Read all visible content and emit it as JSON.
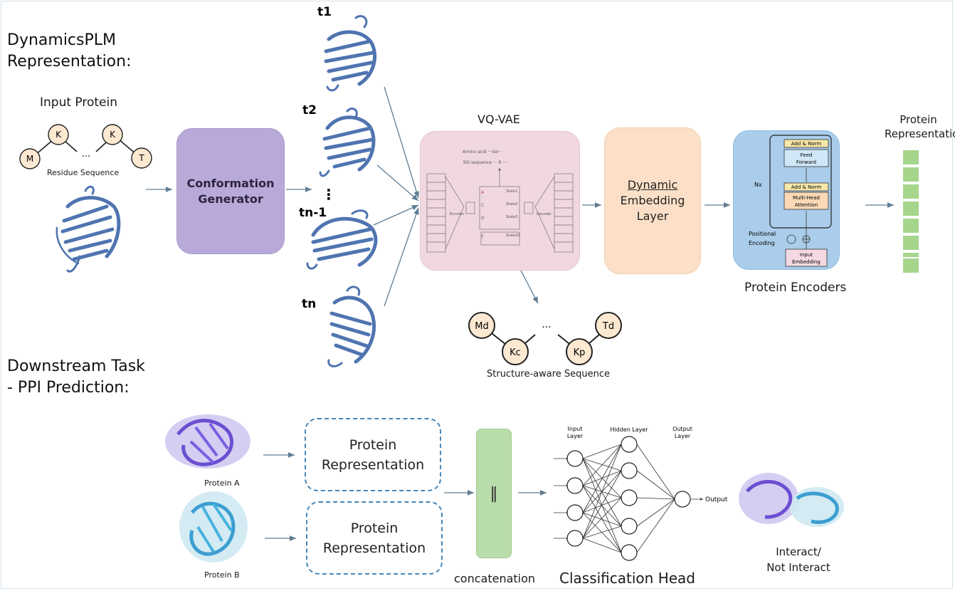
{
  "top": {
    "title_line1": "DynamicsPLM",
    "title_line2": "Representation:",
    "input_protein_label": "Input Protein",
    "residues": [
      "M",
      "K",
      "...",
      "K",
      "T"
    ],
    "residue_caption": "Residue Sequence",
    "conformation_generator_line1": "Conformation",
    "conformation_generator_line2": "Generator",
    "time_labels": [
      "t1",
      "t2",
      "tn-1",
      "tn"
    ],
    "ellipsis_vertical": "⋮",
    "vqvae_title": "VQ-VAE",
    "vqvae_inner": {
      "amino_acid_row": "Amino acid ···Val···",
      "di_row": "3Di sequence ··· R ···",
      "encoder": "Encoder",
      "decoder": "Decoder",
      "state_labels": [
        "State1",
        "State2",
        "State3",
        "State20"
      ],
      "state_letters": [
        "A",
        "C",
        "D",
        "Y"
      ]
    },
    "structure_tokens": [
      "Md",
      "Kc",
      "...",
      "Kp",
      "Td"
    ],
    "structure_caption": "Structure-aware Sequence",
    "dynamic_embedding_line1": "Dynamic",
    "dynamic_embedding_line2": "Embedding",
    "dynamic_embedding_line3": "Layer",
    "encoder_inner": {
      "add_norm": "Add & Norm",
      "feed_forward_line1": "Feed",
      "feed_forward_line2": "Forward",
      "multi_head_line1": "Multi-Head",
      "multi_head_line2": "Attention",
      "nx": "Nx",
      "positional_line1": "Positional",
      "positional_line2": "Encoding",
      "input_embedding_line1": "Input",
      "input_embedding_line2": "Embedding"
    },
    "protein_encoders_label": "Protein Encoders",
    "protein_representation_line1": "Protein",
    "protein_representation_line2": "Representation"
  },
  "bottom": {
    "title_line1": "Downstream Task",
    "title_line2": "- PPI Prediction:",
    "protein_a": "Protein A",
    "protein_b": "Protein B",
    "rep_box_line1": "Protein",
    "rep_box_line2": "Representation",
    "concat_symbol": "‖",
    "concatenation": "concatenation",
    "nn_input_layer_line1": "Input",
    "nn_input_layer_line2": "Layer",
    "nn_hidden_layer": "Hidden Layer",
    "nn_output_layer_line1": "Output",
    "nn_output_layer_line2": "Layer",
    "nn_output": "Output",
    "classification_head": "Classification Head",
    "result_line1": "Interact/",
    "result_line2": "Not Interact"
  },
  "colors": {
    "generator": "#b9a9d9",
    "vqvae": "#f1d8e0",
    "dynamic": "#fbe0c7",
    "encoder": "#a9cdea",
    "rep_green": "#a6d58c",
    "concat_green": "#b9dcab",
    "dash_blue": "#4a86b4",
    "protein_blue": "#4f74b0",
    "arrow": "#5f7d94"
  }
}
